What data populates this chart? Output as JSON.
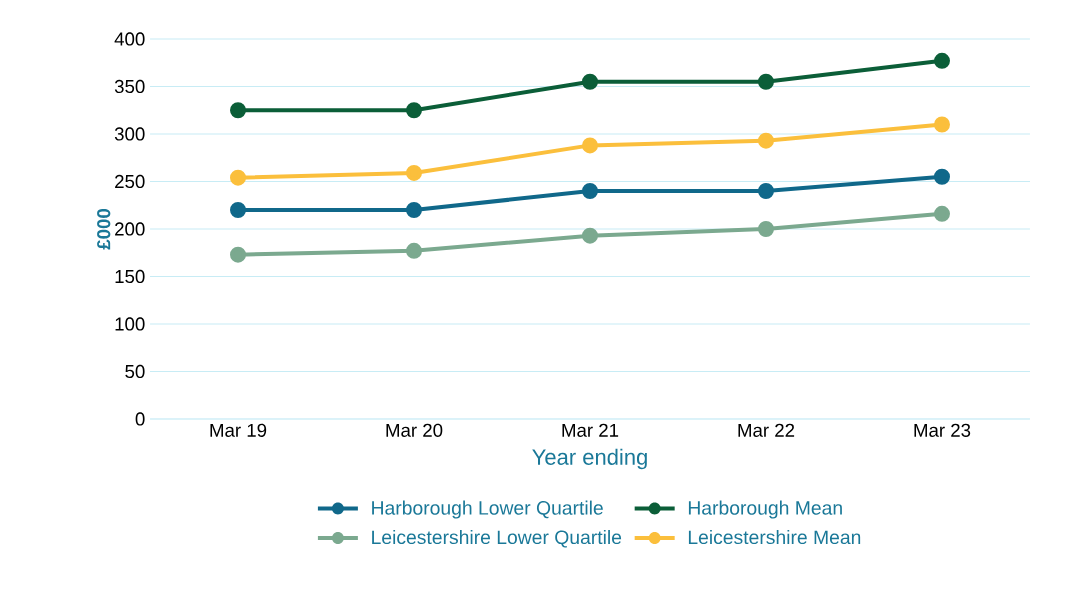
{
  "chart_data": {
    "type": "line",
    "xlabel": "Year ending",
    "ylabel": "£000",
    "categories": [
      "Mar 19",
      "Mar 20",
      "Mar 21",
      "Mar 22",
      "Mar 23"
    ],
    "series": [
      {
        "name": "Harborough Lower Quartile",
        "color": "#10688a",
        "values": [
          220,
          220,
          240,
          240,
          255
        ]
      },
      {
        "name": "Harborough Mean",
        "color": "#0b5e38",
        "values": [
          325,
          325,
          355,
          355,
          377
        ]
      },
      {
        "name": "Leicestershire Lower Quartile",
        "color": "#7ba98f",
        "values": [
          173,
          177,
          193,
          200,
          216
        ]
      },
      {
        "name": "Leicestershire Mean",
        "color": "#fbbf3c",
        "values": [
          254,
          259,
          288,
          293,
          310
        ]
      }
    ],
    "ylim": [
      0,
      400
    ],
    "yticks": [
      0,
      50,
      100,
      150,
      200,
      250,
      300,
      350,
      400
    ],
    "grid": "y",
    "legend": "bottom",
    "marker": "circle",
    "line_style": "solid"
  }
}
